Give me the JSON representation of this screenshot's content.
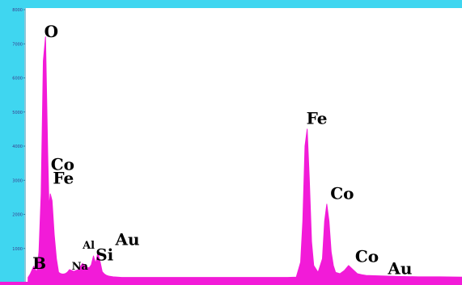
{
  "colors": {
    "frame": "#3fd6f0",
    "spectrum": "#f21bd8",
    "background": "#ffffff",
    "label": "#000000"
  },
  "chart_data": {
    "type": "area",
    "title": "",
    "xlabel": "",
    "ylabel": "",
    "xlim": [
      0,
      10
    ],
    "ylim": [
      0,
      8000
    ],
    "y_ticks": [
      "1000",
      "2000",
      "3000",
      "4000",
      "5000",
      "6000",
      "7000",
      "8000"
    ],
    "grid": false,
    "legend": "none",
    "x": [
      0.05,
      0.1,
      0.18,
      0.25,
      0.3,
      0.35,
      0.4,
      0.45,
      0.5,
      0.53,
      0.56,
      0.6,
      0.65,
      0.7,
      0.75,
      0.8,
      0.85,
      0.9,
      0.95,
      1.0,
      1.1,
      1.2,
      1.3,
      1.4,
      1.45,
      1.5,
      1.55,
      1.6,
      1.65,
      1.7,
      1.75,
      1.8,
      1.85,
      1.9,
      2.0,
      2.1,
      2.2,
      2.3,
      2.5,
      3.0,
      3.5,
      4.0,
      4.5,
      5.0,
      5.5,
      6.0,
      6.2,
      6.3,
      6.35,
      6.4,
      6.45,
      6.5,
      6.55,
      6.6,
      6.7,
      6.8,
      6.85,
      6.9,
      6.95,
      7.0,
      7.05,
      7.1,
      7.2,
      7.3,
      7.4,
      7.5,
      7.6,
      7.7,
      7.8,
      8.0,
      8.5,
      9.0,
      9.5,
      10.0
    ],
    "values": [
      150,
      250,
      480,
      300,
      900,
      2600,
      6500,
      7200,
      3800,
      2200,
      2600,
      2400,
      1400,
      700,
      300,
      260,
      250,
      260,
      300,
      380,
      330,
      380,
      560,
      450,
      430,
      520,
      780,
      560,
      880,
      620,
      320,
      250,
      210,
      190,
      170,
      160,
      150,
      150,
      150,
      150,
      150,
      150,
      150,
      150,
      150,
      150,
      160,
      600,
      1800,
      4000,
      4500,
      3000,
      1200,
      500,
      300,
      700,
      1800,
      2300,
      1800,
      900,
      500,
      300,
      260,
      350,
      500,
      380,
      260,
      230,
      210,
      200,
      180,
      170,
      170,
      160
    ],
    "peak_labels": [
      {
        "text": "O",
        "x": 0.42,
        "y": 7200
      },
      {
        "text": "Co",
        "x": 0.57,
        "y": 3300
      },
      {
        "text": "Fe",
        "x": 0.62,
        "y": 2900
      },
      {
        "text": "B",
        "x": 0.15,
        "y": 400
      },
      {
        "text": "Na",
        "x": 1.05,
        "y": 380
      },
      {
        "text": "Al",
        "x": 1.3,
        "y": 1000
      },
      {
        "text": "Si",
        "x": 1.6,
        "y": 650
      },
      {
        "text": "Au",
        "x": 2.05,
        "y": 1100
      },
      {
        "text": "Fe",
        "x": 6.43,
        "y": 4650
      },
      {
        "text": "Co",
        "x": 6.98,
        "y": 2450
      },
      {
        "text": "Co",
        "x": 7.55,
        "y": 600
      },
      {
        "text": "Au",
        "x": 8.3,
        "y": 250
      }
    ]
  }
}
